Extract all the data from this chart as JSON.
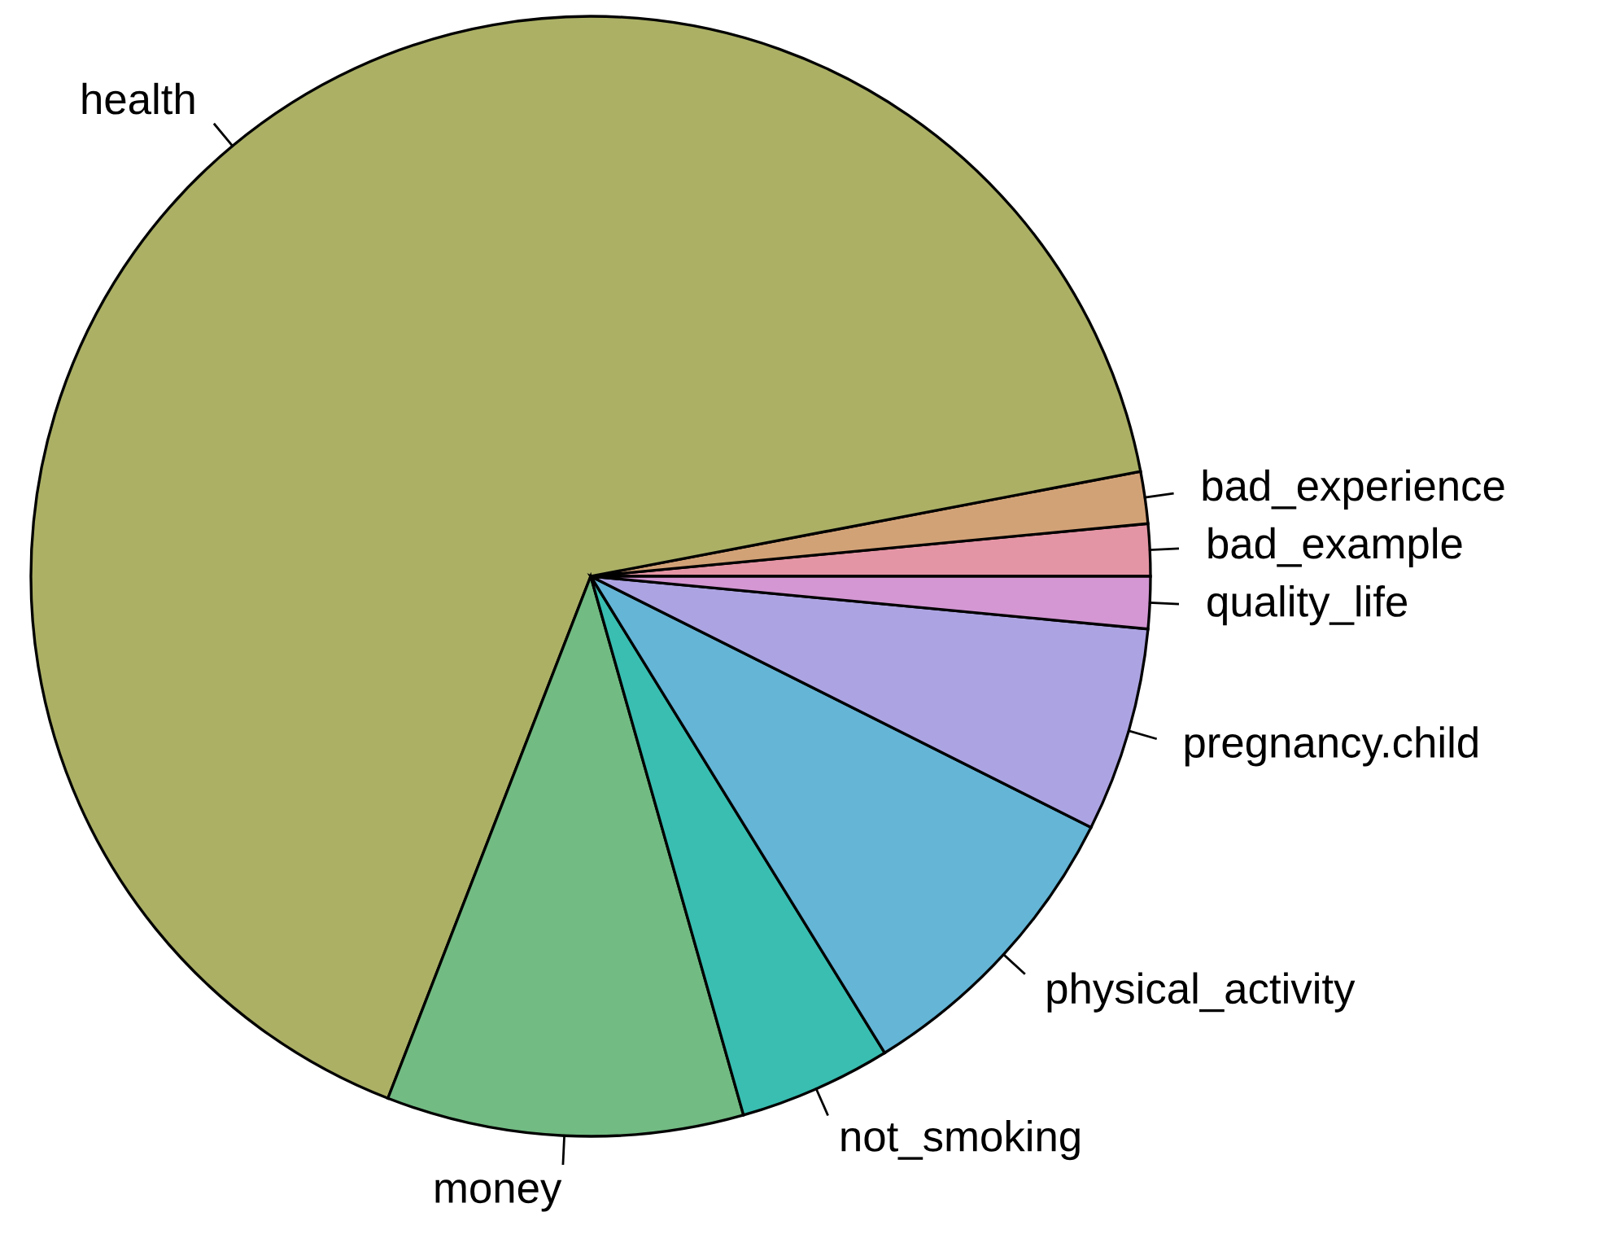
{
  "chart_data": {
    "type": "pie",
    "categories": [
      "bad_example",
      "bad_experience",
      "health",
      "money",
      "not_smoking",
      "physical_activity",
      "pregnancy.child",
      "quality_life"
    ],
    "values": [
      1.5,
      1.5,
      66.1,
      10.3,
      4.4,
      8.8,
      5.9,
      1.5
    ],
    "colors": [
      "#e495a5",
      "#d2a277",
      "#abb065",
      "#72bb83",
      "#39beb1",
      "#64b5d6",
      "#aca4e2",
      "#d497d3"
    ]
  }
}
